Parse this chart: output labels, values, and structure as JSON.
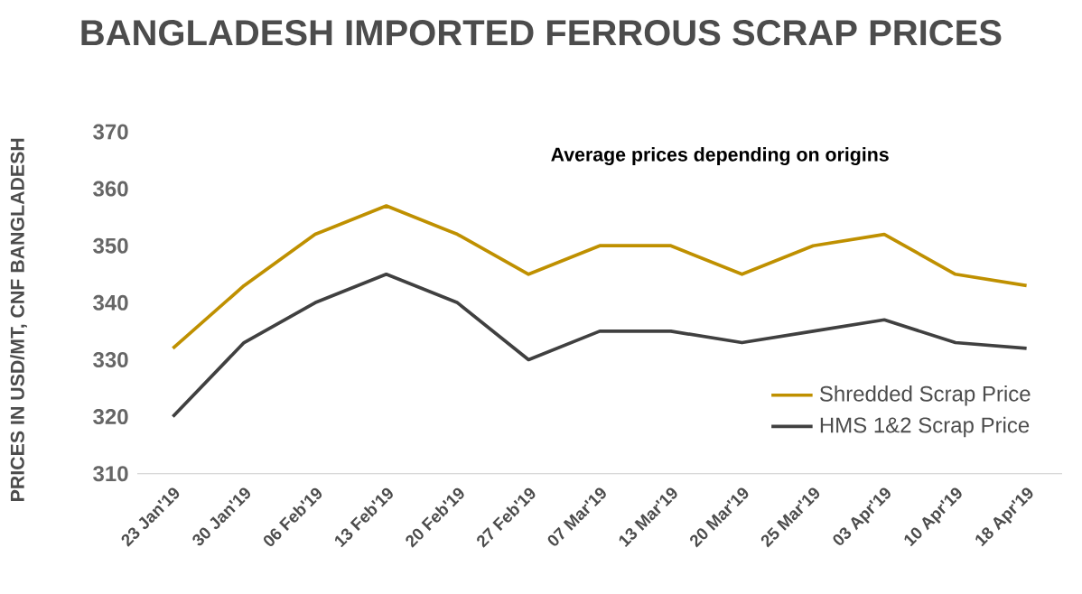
{
  "chart_data": {
    "type": "line",
    "title": "BANGLADESH IMPORTED FERROUS SCRAP PRICES",
    "subtitle": "Average prices depending on origins",
    "ylabel": "PRICES IN USD/MT, CNF BANGLADESH",
    "categories": [
      "23 Jan'19",
      "30 Jan'19",
      "06 Feb'19",
      "13 Feb'19",
      "20 Feb'19",
      "27 Feb'19",
      "07 Mar'19",
      "13 Mar'19",
      "20 Mar'19",
      "25 Mar'19",
      "03 Apr'19",
      "10 Apr'19",
      "18 Apr'19"
    ],
    "series": [
      {
        "name": "Shredded Scrap Price",
        "color": "#bf9000",
        "values": [
          332,
          343,
          352,
          357,
          352,
          345,
          350,
          350,
          345,
          350,
          352,
          345,
          343
        ]
      },
      {
        "name": "HMS 1&2 Scrap Price",
        "color": "#404040",
        "values": [
          320,
          333,
          340,
          345,
          340,
          330,
          335,
          335,
          333,
          335,
          337,
          333,
          332
        ]
      }
    ],
    "ylim": [
      310,
      370
    ],
    "yticks": [
      310,
      320,
      330,
      340,
      350,
      360,
      370
    ],
    "legend": "right",
    "marker": "none",
    "line_style": "solid"
  }
}
